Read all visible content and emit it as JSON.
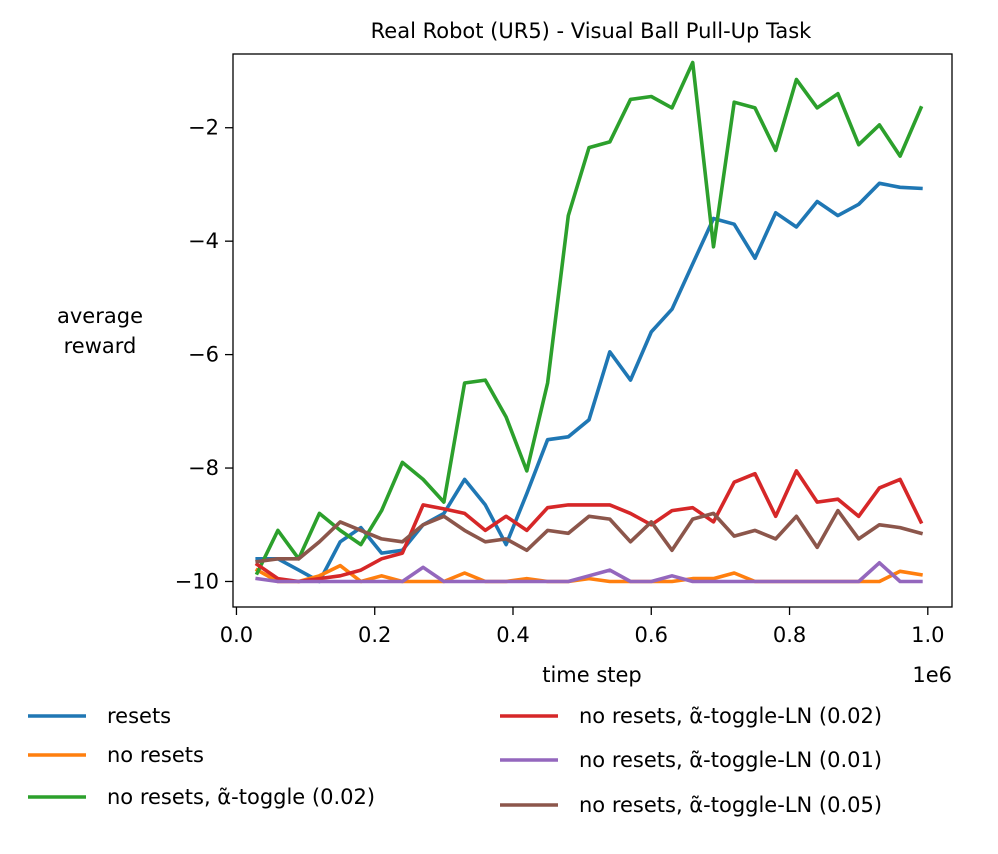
{
  "chart_data": {
    "type": "line",
    "title": "Real Robot (UR5) - Visual Ball Pull-Up Task",
    "xlabel": "time step",
    "ylabel_lines": [
      "average",
      "reward"
    ],
    "x_offset_text": "1e6",
    "xlim": [
      -0.005,
      1.035
    ],
    "ylim": [
      -10.45,
      -0.7
    ],
    "x_ticks": [
      0.0,
      0.2,
      0.4,
      0.6,
      0.8,
      1.0
    ],
    "x_tick_labels": [
      "0.0",
      "0.2",
      "0.4",
      "0.6",
      "0.8",
      "1.0"
    ],
    "y_ticks": [
      -10,
      -8,
      -6,
      -4,
      -2
    ],
    "y_tick_labels": [
      "−10",
      "−8",
      "−6",
      "−4",
      "−2"
    ],
    "x": [
      0.03,
      0.06,
      0.09,
      0.12,
      0.15,
      0.18,
      0.21,
      0.24,
      0.27,
      0.3,
      0.33,
      0.36,
      0.39,
      0.42,
      0.45,
      0.48,
      0.51,
      0.54,
      0.57,
      0.6,
      0.63,
      0.66,
      0.69,
      0.72,
      0.75,
      0.78,
      0.81,
      0.84,
      0.87,
      0.9,
      0.93,
      0.96,
      0.99
    ],
    "series": [
      {
        "name": "resets",
        "color": "#1f77b4",
        "values": [
          -9.6,
          -9.6,
          -9.8,
          -10.0,
          -9.3,
          -9.05,
          -9.5,
          -9.45,
          -9.0,
          -8.8,
          -8.2,
          -8.65,
          -9.35,
          -8.45,
          -7.5,
          -7.45,
          -7.15,
          -5.95,
          -6.45,
          -5.6,
          -5.2,
          -4.4,
          -3.6,
          -3.7,
          -4.3,
          -3.5,
          -3.75,
          -3.3,
          -3.55,
          -3.35,
          -2.98,
          -3.05,
          -3.07
        ]
      },
      {
        "name": "no resets",
        "color": "#ff7f0e",
        "values": [
          -9.8,
          -10.0,
          -10.0,
          -9.9,
          -9.72,
          -10.0,
          -9.9,
          -10.0,
          -10.0,
          -10.0,
          -9.85,
          -10.0,
          -10.0,
          -9.95,
          -10.0,
          -10.0,
          -9.95,
          -10.0,
          -10.0,
          -10.0,
          -10.0,
          -9.95,
          -9.95,
          -9.85,
          -10.0,
          -10.0,
          -10.0,
          -10.0,
          -10.0,
          -10.0,
          -10.0,
          -9.82,
          -9.88
        ]
      },
      {
        "name": "no resets, α̃-toggle (0.02)",
        "color": "#2ca02c",
        "values": [
          -9.85,
          -9.1,
          -9.6,
          -8.8,
          -9.1,
          -9.35,
          -8.75,
          -7.9,
          -8.2,
          -8.6,
          -6.5,
          -6.45,
          -7.1,
          -8.05,
          -6.5,
          -3.55,
          -2.35,
          -2.25,
          -1.5,
          -1.45,
          -1.65,
          -0.85,
          -4.1,
          -1.55,
          -1.65,
          -2.4,
          -1.15,
          -1.65,
          -1.4,
          -2.3,
          -1.95,
          -2.5,
          -1.65
        ]
      },
      {
        "name": "no resets, α̃-toggle-LN (0.02)",
        "color": "#d62728",
        "values": [
          -9.7,
          -9.95,
          -10.0,
          -9.95,
          -9.9,
          -9.8,
          -9.6,
          -9.5,
          -8.65,
          -8.72,
          -8.8,
          -9.1,
          -8.85,
          -9.1,
          -8.7,
          -8.65,
          -8.65,
          -8.65,
          -8.8,
          -9.0,
          -8.75,
          -8.7,
          -8.95,
          -8.25,
          -8.1,
          -8.85,
          -8.05,
          -8.6,
          -8.55,
          -8.85,
          -8.35,
          -8.2,
          -8.95
        ]
      },
      {
        "name": "no resets, α̃-toggle-LN (0.01)",
        "color": "#9467bd",
        "values": [
          -9.95,
          -10.0,
          -10.0,
          -10.0,
          -10.0,
          -10.0,
          -10.0,
          -10.0,
          -9.75,
          -10.0,
          -10.0,
          -10.0,
          -10.0,
          -10.0,
          -10.0,
          -10.0,
          -9.9,
          -9.8,
          -10.0,
          -10.0,
          -9.9,
          -10.0,
          -10.0,
          -10.0,
          -10.0,
          -10.0,
          -10.0,
          -10.0,
          -10.0,
          -10.0,
          -9.67,
          -10.0,
          -10.0
        ]
      },
      {
        "name": "no resets, α̃-toggle-LN (0.05)",
        "color": "#8c564b",
        "values": [
          -9.65,
          -9.6,
          -9.6,
          -9.3,
          -8.95,
          -9.1,
          -9.25,
          -9.3,
          -9.0,
          -8.85,
          -9.1,
          -9.3,
          -9.25,
          -9.45,
          -9.1,
          -9.15,
          -8.85,
          -8.9,
          -9.3,
          -8.95,
          -9.45,
          -8.9,
          -8.8,
          -9.2,
          -9.1,
          -9.25,
          -8.85,
          -9.4,
          -8.75,
          -9.25,
          -9.0,
          -9.05,
          -9.15
        ]
      }
    ],
    "legend_placement": "below plot, two columns"
  }
}
